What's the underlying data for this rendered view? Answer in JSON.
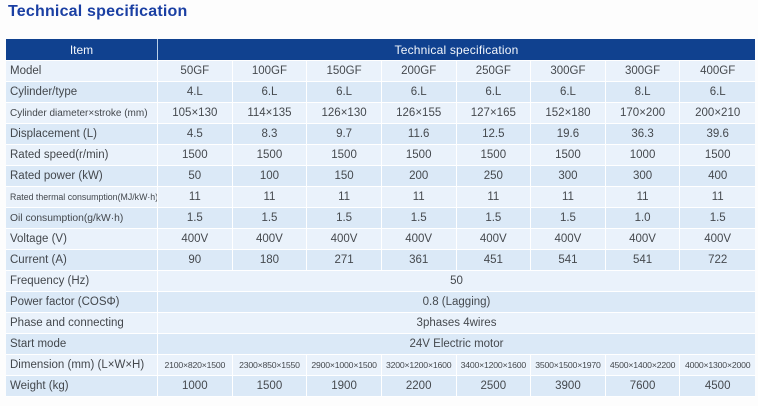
{
  "page": {
    "title": "Technical specification"
  },
  "colors": {
    "title": "#1a3fa3",
    "header_bg": "#10418f",
    "header_text": "#ffffff",
    "row_light": "#eaf2fb",
    "row_dark": "#dbe9f7",
    "body_text": "#45494e"
  },
  "table": {
    "header": {
      "item_label": "Item",
      "spec_label": "Technical specification"
    },
    "rows": [
      {
        "label": "Model",
        "values": [
          "50GF",
          "100GF",
          "150GF",
          "200GF",
          "250GF",
          "300GF",
          "300GF",
          "400GF"
        ]
      },
      {
        "label": "Cylinder/type",
        "values": [
          "4.L",
          "6.L",
          "6.L",
          "6.L",
          "6.L",
          "6.L",
          "8.L",
          "6.L"
        ]
      },
      {
        "label": "Cylinder diameter×stroke (mm)",
        "values": [
          "105×130",
          "114×135",
          "126×130",
          "126×155",
          "127×165",
          "152×180",
          "170×200",
          "200×210"
        ]
      },
      {
        "label": "Displacement (L)",
        "values": [
          "4.5",
          "8.3",
          "9.7",
          "11.6",
          "12.5",
          "19.6",
          "36.3",
          "39.6"
        ]
      },
      {
        "label": "Rated speed(r/min)",
        "values": [
          "1500",
          "1500",
          "1500",
          "1500",
          "1500",
          "1500",
          "1000",
          "1500"
        ]
      },
      {
        "label": "Rated power (kW)",
        "values": [
          "50",
          "100",
          "150",
          "200",
          "250",
          "300",
          "300",
          "400"
        ]
      },
      {
        "label": "Rated thermal consumption(MJ/kW·h)",
        "values": [
          "11",
          "11",
          "11",
          "11",
          "11",
          "11",
          "11",
          "11"
        ]
      },
      {
        "label": "Oil consumption(g/kW·h)",
        "values": [
          "1.5",
          "1.5",
          "1.5",
          "1.5",
          "1.5",
          "1.5",
          "1.0",
          "1.5"
        ]
      },
      {
        "label": "Voltage (V)",
        "values": [
          "400V",
          "400V",
          "400V",
          "400V",
          "400V",
          "400V",
          "400V",
          "400V"
        ]
      },
      {
        "label": "Current (A)",
        "values": [
          "90",
          "180",
          "271",
          "361",
          "451",
          "541",
          "541",
          "722"
        ]
      },
      {
        "label": "Frequency (Hz)",
        "merged": "50"
      },
      {
        "label": "Power factor (COSΦ)",
        "merged": "0.8 (Lagging)"
      },
      {
        "label": "Phase and connecting",
        "merged": "3phases 4wires"
      },
      {
        "label": "Start mode",
        "merged": "24V Electric motor"
      },
      {
        "label": "Dimension (mm) (L×W×H)",
        "values": [
          "2100×820×1500",
          "2300×850×1550",
          "2900×1000×1500",
          "3200×1200×1600",
          "3400×1200×1600",
          "3500×1500×1970",
          "4500×1400×2200",
          "4000×1300×2000"
        ]
      },
      {
        "label": "Weight (kg)",
        "values": [
          "1000",
          "1500",
          "1900",
          "2200",
          "2500",
          "3900",
          "7600",
          "4500"
        ]
      }
    ]
  }
}
